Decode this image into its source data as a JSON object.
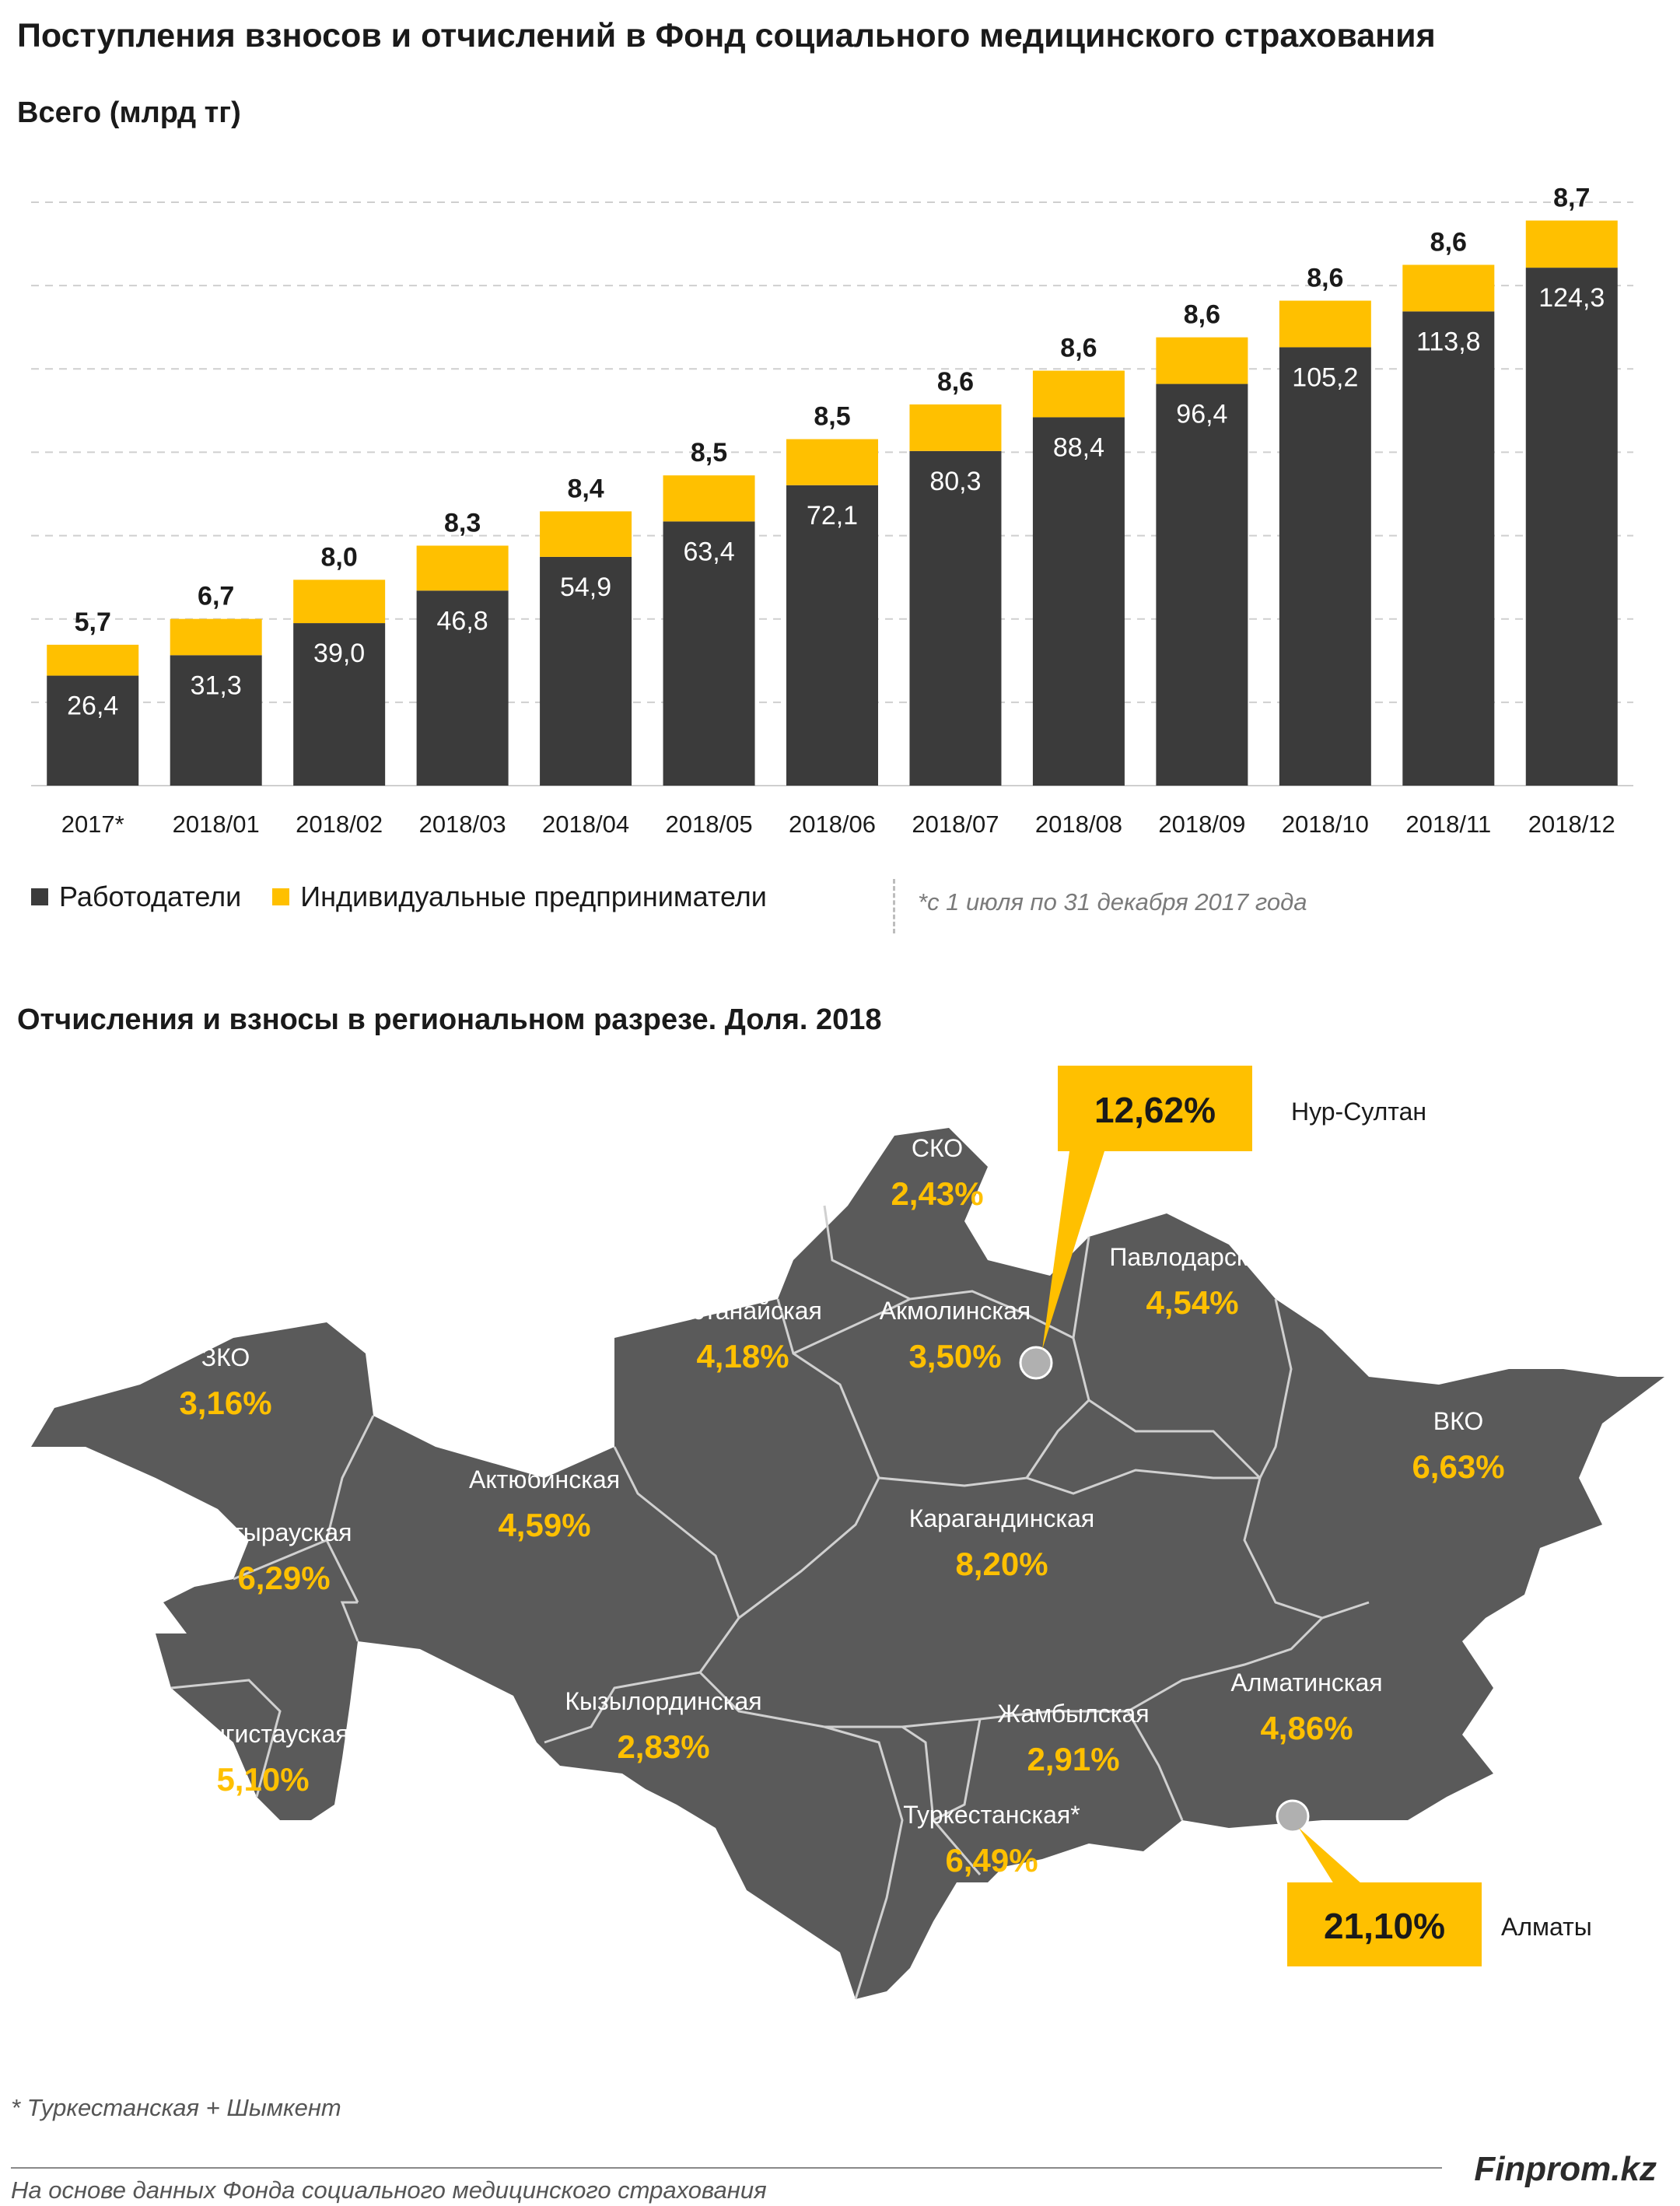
{
  "title": "Поступления взносов и отчислений в Фонд социального медицинского страхования",
  "colors": {
    "employers": "#3b3b3b",
    "entrepreneurs": "#ffc000",
    "map_fill": "#5a5a5a",
    "map_border": "#d0d0d0",
    "grid": "#cfcfcf"
  },
  "chart_data": {
    "type": "bar",
    "stacked": true,
    "title": "Всего (млрд тг)",
    "categories": [
      "2017*",
      "2018/01",
      "2018/02",
      "2018/03",
      "2018/04",
      "2018/05",
      "2018/06",
      "2018/07",
      "2018/08",
      "2018/09",
      "2018/10",
      "2018/11",
      "2018/12"
    ],
    "series": [
      {
        "name": "Работодатели",
        "values": [
          26.4,
          31.3,
          39.0,
          46.8,
          54.9,
          63.4,
          72.1,
          80.3,
          88.4,
          96.4,
          105.2,
          113.8,
          124.3
        ],
        "labels": [
          "26,4",
          "31,3",
          "39,0",
          "46,8",
          "54,9",
          "63,4",
          "72,1",
          "80,3",
          "88,4",
          "96,4",
          "105,2",
          "113,8",
          "124,3"
        ]
      },
      {
        "name": "Индивидуальные предприниматели",
        "values": [
          5.7,
          6.7,
          8.0,
          8.3,
          8.4,
          8.5,
          8.5,
          8.6,
          8.6,
          8.6,
          8.6,
          8.6,
          8.7
        ],
        "labels": [
          "5,7",
          "6,7",
          "8,0",
          "8,3",
          "8,4",
          "8,5",
          "8,5",
          "8,6",
          "8,6",
          "8,6",
          "8,6",
          "8,6",
          "8,7"
        ]
      }
    ],
    "ylim": [
      0,
      140
    ],
    "grid": true,
    "legend": "bottom-left"
  },
  "legend_note": "*с 1 июля по 31 декабря 2017 года",
  "map": {
    "title": "Отчисления и взносы в региональном разрезе. Доля. 2018",
    "regions": [
      {
        "name": "СКО",
        "share": "2,43%"
      },
      {
        "name": "Павлодарская",
        "share": "4,54%"
      },
      {
        "name": "Костанайская",
        "share": "4,18%"
      },
      {
        "name": "Акмолинская",
        "share": "3,50%"
      },
      {
        "name": "ЗКО",
        "share": "3,16%"
      },
      {
        "name": "ВКО",
        "share": "6,63%"
      },
      {
        "name": "Актюбинская",
        "share": "4,59%"
      },
      {
        "name": "Атырауская",
        "share": "6,29%"
      },
      {
        "name": "Карагандинская",
        "share": "8,20%"
      },
      {
        "name": "Алматинская",
        "share": "4,86%"
      },
      {
        "name": "Кызылординская",
        "share": "2,83%"
      },
      {
        "name": "Жамбылская",
        "share": "2,91%"
      },
      {
        "name": "Мангистауская",
        "share": "5,10%"
      },
      {
        "name": "Туркестанская*",
        "share": "6,49%"
      }
    ],
    "cities": [
      {
        "name": "Нур-Султан",
        "share": "12,62%"
      },
      {
        "name": "Алматы",
        "share": "21,10%"
      }
    ]
  },
  "footnote": "* Туркестанская + Шымкент",
  "brand": "Finprom.kz",
  "source": "На основе данных Фонда социального медицинского страхования"
}
